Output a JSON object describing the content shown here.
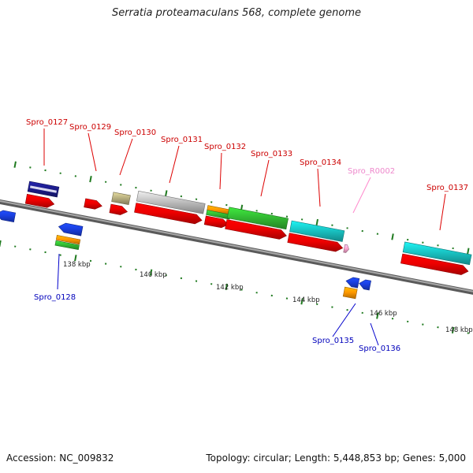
{
  "title": "Serratia proteamaculans 568, complete genome",
  "footer": {
    "accession": "Accession: NC_009832",
    "summary": "Topology: circular; Length: 5,448,853 bp; Genes: 5,000"
  },
  "colors": {
    "backbone": "#777777",
    "tick": "#1f7a1f",
    "label_forward": "#cc0000",
    "label_reverse": "#0000bb",
    "label_rna": "#ee88cc",
    "leader_forward": "#dd0000",
    "leader_reverse": "#0000cc",
    "leader_rna": "#ff88cc"
  },
  "scale_labels": [
    "138 kbp",
    "140 kbp",
    "142 kbp",
    "144 kbp",
    "146 kbp",
    "148 kbp"
  ],
  "gene_labels": [
    {
      "text": "Spro_0127",
      "type": "forward"
    },
    {
      "text": "Spro_0128",
      "type": "reverse"
    },
    {
      "text": "Spro_0129",
      "type": "forward"
    },
    {
      "text": "Spro_0130",
      "type": "forward"
    },
    {
      "text": "Spro_0131",
      "type": "forward"
    },
    {
      "text": "Spro_0132",
      "type": "forward"
    },
    {
      "text": "Spro_0133",
      "type": "forward"
    },
    {
      "text": "Spro_0134",
      "type": "forward"
    },
    {
      "text": "Spro_R0002",
      "type": "rna"
    },
    {
      "text": "Spro_0137",
      "type": "forward"
    },
    {
      "text": "Spro_0135",
      "type": "reverse"
    },
    {
      "text": "Spro_0136",
      "type": "reverse"
    }
  ],
  "features": [
    {
      "name": "gene-partial-left",
      "strand": "reverse",
      "color": "#1a3fe0"
    },
    {
      "name": "gene-0127-cog",
      "strand": "forward",
      "color": "#1c1c8c",
      "stripe": "#d8d8f0"
    },
    {
      "name": "gene-0127",
      "strand": "forward",
      "color": "#ee0000"
    },
    {
      "name": "gene-0128",
      "strand": "reverse",
      "color": "#1a3fe0"
    },
    {
      "name": "gene-0128-cog-a",
      "strand": "reverse",
      "color": "#ff9900"
    },
    {
      "name": "gene-0128-cog-b",
      "strand": "reverse",
      "color": "#33bb33"
    },
    {
      "name": "gene-0129",
      "strand": "forward",
      "color": "#ee0000"
    },
    {
      "name": "gene-0130-cog",
      "strand": "forward",
      "color": "#b8b080"
    },
    {
      "name": "gene-0130",
      "strand": "forward",
      "color": "#ee0000"
    },
    {
      "name": "gene-0131-cog",
      "strand": "forward",
      "color": "#c0c0c0"
    },
    {
      "name": "gene-0131",
      "strand": "forward",
      "color": "#ee0000"
    },
    {
      "name": "gene-0132-cog-a",
      "strand": "forward",
      "color": "#ff9900"
    },
    {
      "name": "gene-0132-cog-b",
      "strand": "forward",
      "color": "#33bb33"
    },
    {
      "name": "gene-0132",
      "strand": "forward",
      "color": "#ee0000"
    },
    {
      "name": "gene-0133-cog",
      "strand": "forward",
      "color": "#33bb33"
    },
    {
      "name": "gene-0133",
      "strand": "forward",
      "color": "#ee0000"
    },
    {
      "name": "gene-0134-cog",
      "strand": "forward",
      "color": "#19c4c4"
    },
    {
      "name": "gene-0134",
      "strand": "forward",
      "color": "#ee0000"
    },
    {
      "name": "rna-R0002",
      "strand": "forward",
      "color": "#ffaad4"
    },
    {
      "name": "gene-0135",
      "strand": "reverse",
      "color": "#1a3fe0"
    },
    {
      "name": "gene-0135-cog",
      "strand": "reverse",
      "color": "#ff9900"
    },
    {
      "name": "gene-0136",
      "strand": "reverse",
      "color": "#1a3fe0"
    },
    {
      "name": "gene-0137-cog",
      "strand": "forward",
      "color": "#19c4c4"
    },
    {
      "name": "gene-0137",
      "strand": "forward",
      "color": "#ee0000"
    }
  ]
}
